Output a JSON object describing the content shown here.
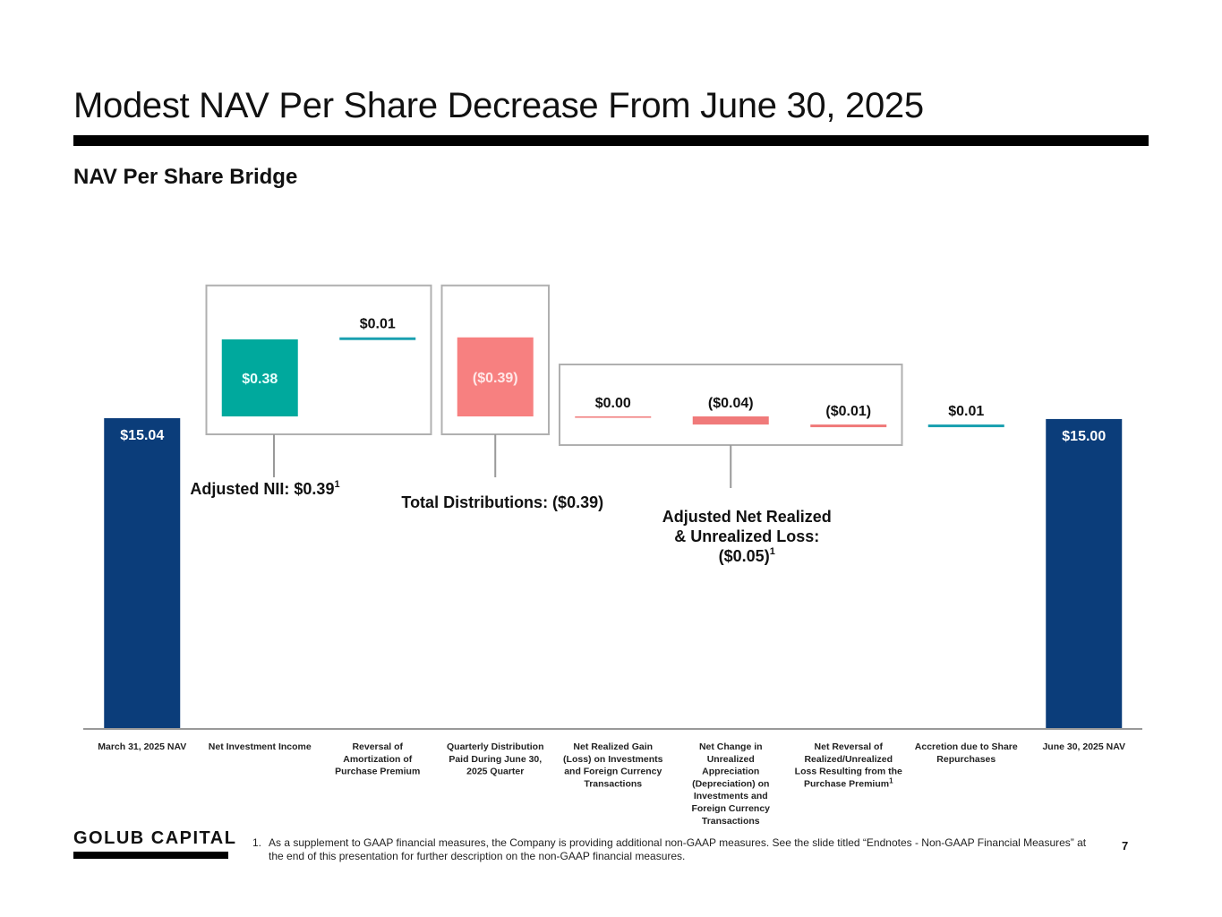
{
  "header": {
    "title": "Modest NAV Per Share Decrease From June 30, 2025",
    "subtitle": "NAV Per Share Bridge"
  },
  "chart_data": {
    "type": "bar",
    "subtype": "waterfall",
    "categories": [
      "March 31, 2025 NAV",
      "Net Investment Income",
      "Reversal of Amortization of Purchase Premium",
      "Quarterly Distribution Paid During June 30, 2025 Quarter",
      "Net Realized Gain (Loss) on Investments and Foreign Currency Transactions",
      "Net Change in Unrealized Appreciation (Depreciation) on Investments and Foreign Currency Transactions",
      "Net Reversal of Realized/Unrealized Loss Resulting from the Purchase Premium",
      "Accretion due to Share Repurchases",
      "June 30, 2025 NAV"
    ],
    "category_lines": [
      [
        "March 31, 2025 NAV"
      ],
      [
        "Net Investment Income"
      ],
      [
        "Reversal of",
        "Amortization of",
        "Purchase Premium"
      ],
      [
        "Quarterly Distribution",
        "Paid During June 30,",
        "2025 Quarter"
      ],
      [
        "Net Realized Gain",
        "(Loss) on Investments",
        "and Foreign Currency",
        "Transactions"
      ],
      [
        "Net Change in",
        "Unrealized",
        "Appreciation",
        "(Depreciation) on",
        "Investments and",
        "Foreign Currency",
        "Transactions"
      ],
      [
        "Net Reversal of",
        "Realized/Unrealized",
        "Loss Resulting from the",
        "Purchase Premium"
      ],
      [
        "Accretion due to Share",
        "Repurchases"
      ],
      [
        "June 30, 2025 NAV"
      ]
    ],
    "category_footnote": [
      "",
      "",
      "",
      "",
      "",
      "",
      "1",
      "",
      ""
    ],
    "values": [
      15.04,
      0.38,
      0.01,
      -0.39,
      0.0,
      -0.04,
      -0.01,
      0.01,
      15.0
    ],
    "kinds": [
      "total",
      "increase",
      "increase",
      "decrease",
      "decrease",
      "decrease",
      "decrease",
      "increase",
      "total"
    ],
    "data_labels": [
      "$15.04",
      "$0.38",
      "$0.01",
      "($0.39)",
      "$0.00",
      "($0.04)",
      "($0.01)",
      "$0.01",
      "$15.00"
    ],
    "groups": [
      {
        "label_lines": [
          "Adjusted NII: $0.39"
        ],
        "footnote": "1",
        "start": 1,
        "end": 2
      },
      {
        "label_lines": [
          "Total Distributions: ($0.39)"
        ],
        "footnote": "",
        "start": 3,
        "end": 3
      },
      {
        "label_lines": [
          "Adjusted Net Realized",
          "& Unrealized Loss:",
          "($0.05)"
        ],
        "footnote": "1",
        "start": 4,
        "end": 6
      }
    ],
    "colors": {
      "total": "#0b3d7a",
      "increase": "#00a99d",
      "decrease": "#f78080",
      "line_increase": "#1aa0b0",
      "line_decrease": "#f07a7a",
      "box": "#b0b0b0",
      "axis": "#999999"
    }
  },
  "footer": {
    "logo": "GOLUB CAPITAL",
    "footnote_number": "1.",
    "footnote_text": "As a supplement to GAAP financial measures, the Company is providing additional non-GAAP measures. See the slide titled “Endnotes - Non-GAAP Financial Measures” at the end of this presentation for further description on the non-GAAP financial measures.",
    "page_number": "7"
  }
}
